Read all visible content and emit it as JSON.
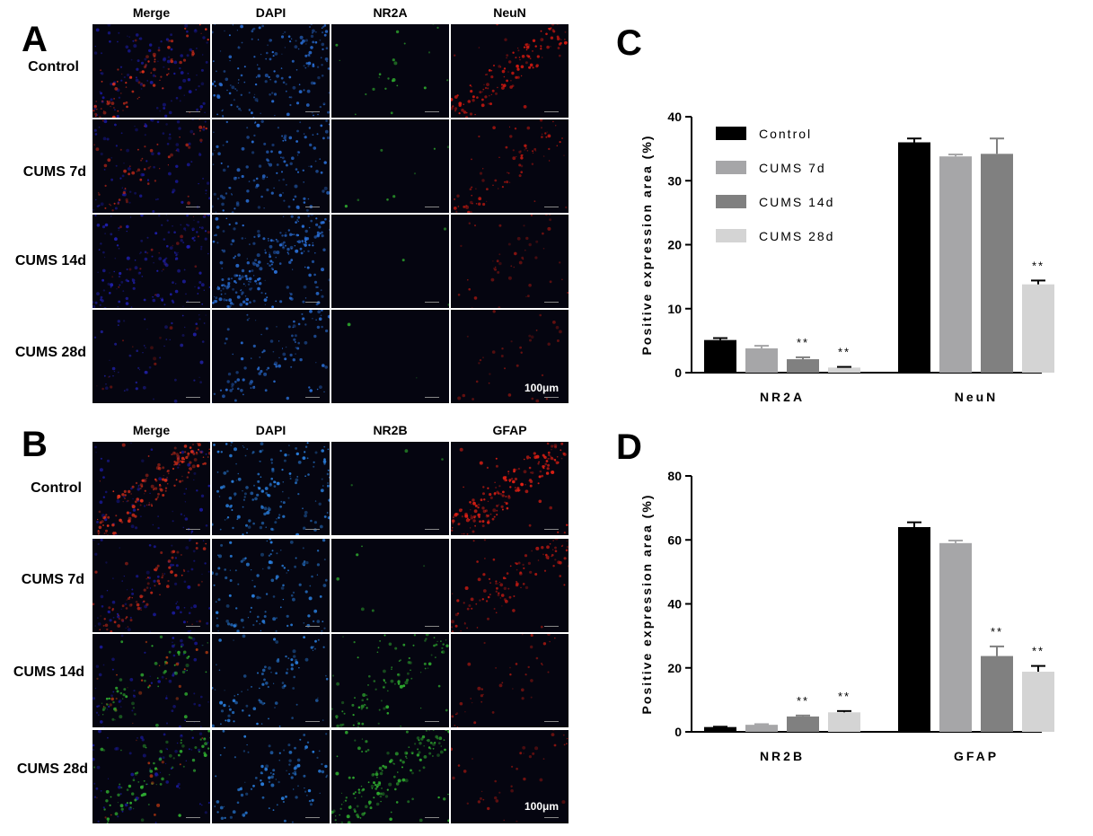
{
  "figure": {
    "panels": [
      {
        "letter": "A",
        "columns": [
          "Merge",
          "DAPI",
          "NR2A",
          "NeuN"
        ],
        "rows": [
          "Control",
          "CUMS 7d",
          "CUMS 14d",
          "CUMS 28d"
        ],
        "scale_bar": "100μm"
      },
      {
        "letter": "B",
        "columns": [
          "Merge",
          "DAPI",
          "NR2B",
          "GFAP"
        ],
        "rows": [
          "Control",
          "CUMS 7d",
          "CUMS 14d",
          "CUMS 28d"
        ],
        "scale_bar": "100μm"
      }
    ]
  },
  "chart_data": [
    {
      "panel": "C",
      "type": "bar",
      "categories": [
        "NR2A",
        "NeuN"
      ],
      "ylabel": "Positive expression area (%)",
      "ylim": [
        0,
        40
      ],
      "yticks": [
        0,
        10,
        20,
        30,
        40
      ],
      "legend_position": "top-left",
      "series": [
        {
          "name": "Control",
          "color": "#000000",
          "values": [
            5.1,
            36.0
          ],
          "errors": [
            0.3,
            0.6
          ],
          "sig": [
            "",
            ""
          ]
        },
        {
          "name": "CUMS 7d",
          "color": "#a6a6a8",
          "values": [
            3.8,
            33.8
          ],
          "errors": [
            0.4,
            0.3
          ],
          "sig": [
            "",
            ""
          ]
        },
        {
          "name": "CUMS 14d",
          "color": "#808080",
          "values": [
            2.1,
            34.2
          ],
          "errors": [
            0.3,
            2.4
          ],
          "sig": [
            "**",
            ""
          ]
        },
        {
          "name": "CUMS 28d",
          "color": "#d4d4d4",
          "values": [
            0.8,
            13.8
          ],
          "errors": [
            0.1,
            0.6
          ],
          "sig": [
            "**",
            "**"
          ]
        }
      ]
    },
    {
      "panel": "D",
      "type": "bar",
      "categories": [
        "NR2B",
        "GFAP"
      ],
      "ylabel": "Positive expression area (%)",
      "ylim": [
        0,
        80
      ],
      "yticks": [
        0,
        20,
        40,
        60,
        80
      ],
      "legend_position": "none",
      "series": [
        {
          "name": "Control",
          "color": "#000000",
          "values": [
            1.5,
            64.0
          ],
          "errors": [
            0.1,
            1.5
          ],
          "sig": [
            "",
            ""
          ]
        },
        {
          "name": "CUMS 7d",
          "color": "#a6a6a8",
          "values": [
            2.2,
            59.0
          ],
          "errors": [
            0.2,
            0.8
          ],
          "sig": [
            "",
            ""
          ]
        },
        {
          "name": "CUMS 14d",
          "color": "#808080",
          "values": [
            4.8,
            23.7
          ],
          "errors": [
            0.3,
            3.0
          ],
          "sig": [
            "**",
            "**"
          ]
        },
        {
          "name": "CUMS 28d",
          "color": "#d4d4d4",
          "values": [
            6.1,
            18.8
          ],
          "errors": [
            0.4,
            1.8
          ],
          "sig": [
            "**",
            "**"
          ]
        }
      ]
    }
  ]
}
